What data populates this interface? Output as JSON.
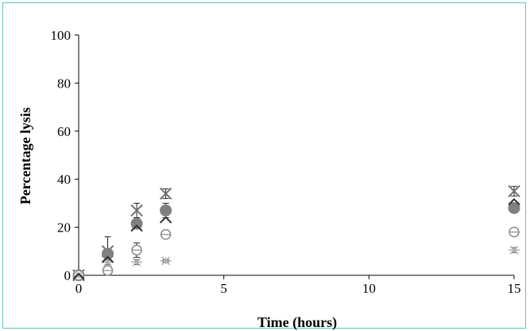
{
  "chart_data": {
    "type": "scatter",
    "title": "",
    "xlabel": "Time (hours)",
    "ylabel": "Percentage lysis",
    "xlim": [
      0,
      15
    ],
    "ylim": [
      0,
      100
    ],
    "x_ticks": [
      0,
      5,
      10,
      15
    ],
    "y_ticks": [
      0,
      20,
      40,
      60,
      80,
      100
    ],
    "x_tick_labels": [
      "0",
      "5",
      "10",
      "15"
    ],
    "y_tick_labels": [
      "0",
      "20",
      "40",
      "60",
      "80",
      "100"
    ],
    "grid": false,
    "legend": "none",
    "series": [
      {
        "marker": "x-cross",
        "color": "#707070",
        "points": [
          {
            "x": 0,
            "y": 0
          },
          {
            "x": 1,
            "y": 10
          },
          {
            "x": 2,
            "y": 27
          },
          {
            "x": 3,
            "y": 34
          },
          {
            "x": 15,
            "y": 35
          }
        ],
        "errors": [
          0,
          1,
          3,
          2,
          2
        ]
      },
      {
        "marker": "filled-circle",
        "color": "#808080",
        "points": [
          {
            "x": 0,
            "y": 0
          },
          {
            "x": 1,
            "y": 9
          },
          {
            "x": 2,
            "y": 21.5
          },
          {
            "x": 3,
            "y": 27
          },
          {
            "x": 15,
            "y": 28
          }
        ],
        "errors": [
          0,
          7,
          2,
          3,
          1
        ]
      },
      {
        "marker": "circle-bar",
        "color": "#8a8a8a",
        "points": [
          {
            "x": 0,
            "y": 0
          },
          {
            "x": 1,
            "y": 2
          },
          {
            "x": 2,
            "y": 10.5
          },
          {
            "x": 3,
            "y": 17
          },
          {
            "x": 15,
            "y": 18
          }
        ],
        "errors": [
          0,
          1,
          3,
          1,
          1
        ]
      },
      {
        "marker": "asterisk",
        "color": "#b0b0b0",
        "points": [
          {
            "x": 0,
            "y": 0
          },
          {
            "x": 1,
            "y": 5.5
          },
          {
            "x": 2,
            "y": 5.5
          },
          {
            "x": 3,
            "y": 6
          },
          {
            "x": 15,
            "y": 10.5
          }
        ],
        "errors": [
          0,
          1,
          1,
          0.5,
          1
        ]
      },
      {
        "marker": "chevron",
        "color": "#303030",
        "points": [
          {
            "x": 0,
            "y": 0
          },
          {
            "x": 1,
            "y": 7
          },
          {
            "x": 2,
            "y": 20
          },
          {
            "x": 3,
            "y": 23.5
          },
          {
            "x": 15,
            "y": 31
          }
        ],
        "errors": [
          0,
          0,
          0,
          0,
          0
        ]
      }
    ]
  },
  "colors": {
    "frame_border": "#5fc3c0",
    "axis": "#000000"
  }
}
